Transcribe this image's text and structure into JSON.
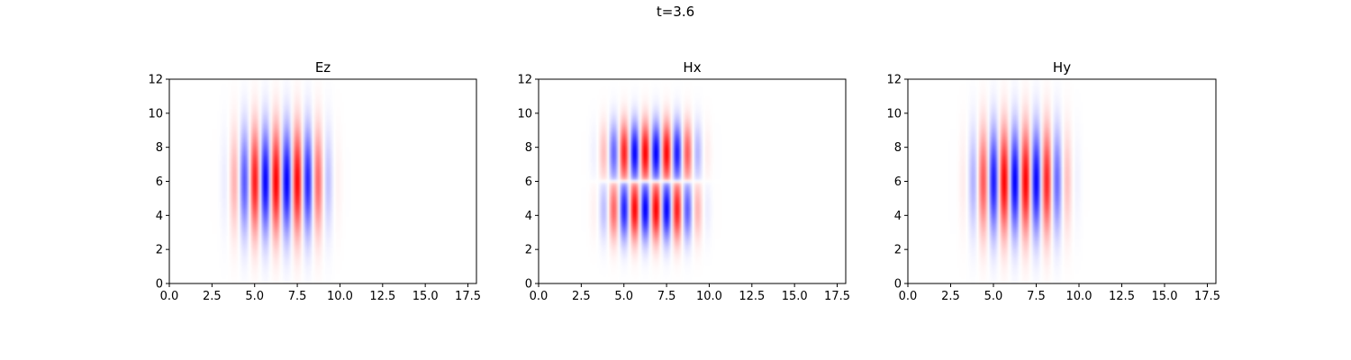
{
  "figure": {
    "suptitle": "t=3.6"
  },
  "chart_data": [
    {
      "type": "heatmap",
      "title": "Ez",
      "xlim": [
        0,
        18
      ],
      "ylim": [
        0,
        12
      ],
      "xticks": [
        0.0,
        2.5,
        5.0,
        7.5,
        10.0,
        12.5,
        15.0,
        17.5
      ],
      "xtick_labels": [
        "0.0",
        "2.5",
        "5.0",
        "7.5",
        "10.0",
        "12.5",
        "15.0",
        "17.5"
      ],
      "yticks": [
        0,
        2,
        4,
        6,
        8,
        10,
        12
      ],
      "ytick_labels": [
        "0",
        "2",
        "4",
        "6",
        "8",
        "10",
        "12"
      ],
      "colormap": "bwr",
      "colors": {
        "positive": "#ff0000",
        "negative": "#0000ff",
        "zero": "#ffffff"
      },
      "field_model": {
        "pattern": "vertical-stripes",
        "center": [
          6.5,
          6.0
        ],
        "extent": [
          2.6,
          3.3
        ],
        "wavelength": 1.25,
        "phase": 0.0,
        "amplitude": 1.0,
        "symmetry": "even-in-y"
      }
    },
    {
      "type": "heatmap",
      "title": "Hx",
      "xlim": [
        0,
        18
      ],
      "ylim": [
        0,
        12
      ],
      "xticks": [
        0.0,
        2.5,
        5.0,
        7.5,
        10.0,
        12.5,
        15.0,
        17.5
      ],
      "xtick_labels": [
        "0.0",
        "2.5",
        "5.0",
        "7.5",
        "10.0",
        "12.5",
        "15.0",
        "17.5"
      ],
      "yticks": [
        0,
        2,
        4,
        6,
        8,
        10,
        12
      ],
      "ytick_labels": [
        "0",
        "2",
        "4",
        "6",
        "8",
        "10",
        "12"
      ],
      "colormap": "bwr",
      "colors": {
        "positive": "#ff0000",
        "negative": "#0000ff",
        "zero": "#ffffff"
      },
      "field_model": {
        "pattern": "vertical-stripes",
        "center": [
          6.6,
          6.0
        ],
        "extent": [
          2.6,
          3.3
        ],
        "wavelength": 1.25,
        "phase": 0.0,
        "amplitude": 1.0,
        "symmetry": "odd-in-y",
        "node_line_y": 6.0
      }
    },
    {
      "type": "heatmap",
      "title": "Hy",
      "xlim": [
        0,
        18
      ],
      "ylim": [
        0,
        12
      ],
      "xticks": [
        0.0,
        2.5,
        5.0,
        7.5,
        10.0,
        12.5,
        15.0,
        17.5
      ],
      "xtick_labels": [
        "0.0",
        "2.5",
        "5.0",
        "7.5",
        "10.0",
        "12.5",
        "15.0",
        "17.5"
      ],
      "yticks": [
        0,
        2,
        4,
        6,
        8,
        10,
        12
      ],
      "ytick_labels": [
        "0",
        "2",
        "4",
        "6",
        "8",
        "10",
        "12"
      ],
      "colormap": "bwr",
      "colors": {
        "positive": "#ff0000",
        "negative": "#0000ff",
        "zero": "#ffffff"
      },
      "field_model": {
        "pattern": "vertical-stripes",
        "center": [
          6.5,
          6.0
        ],
        "extent": [
          2.6,
          3.3
        ],
        "wavelength": 1.25,
        "phase": 3.14159,
        "amplitude": 1.0,
        "symmetry": "even-in-y"
      }
    }
  ]
}
